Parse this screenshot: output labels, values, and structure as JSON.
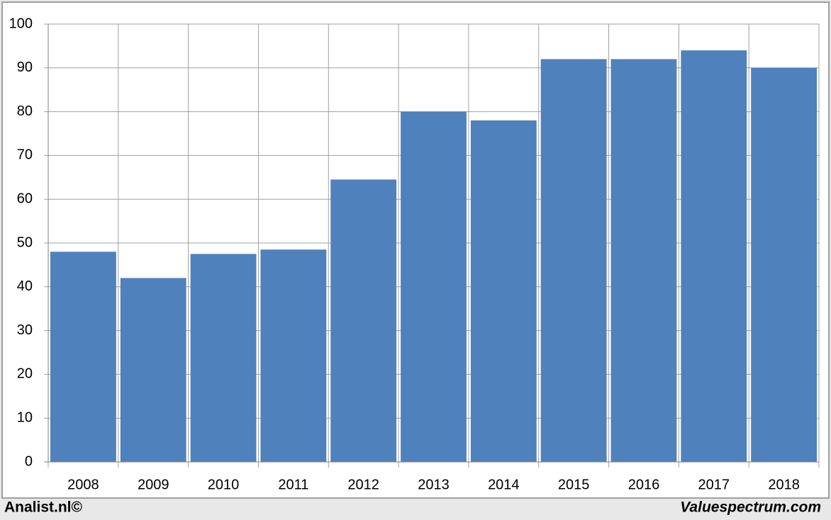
{
  "chart_data": {
    "type": "bar",
    "categories": [
      "2008",
      "2009",
      "2010",
      "2011",
      "2012",
      "2013",
      "2014",
      "2015",
      "2016",
      "2017",
      "2018"
    ],
    "values": [
      48,
      42,
      47.5,
      48.5,
      64.5,
      80,
      78,
      92,
      92,
      94,
      90
    ],
    "color": "#4f81bd",
    "ylim": [
      0,
      100
    ],
    "yticks": [
      0,
      10,
      20,
      30,
      40,
      50,
      60,
      70,
      80,
      90,
      100
    ],
    "grid": true
  },
  "footer": {
    "left": "Analist.nl©",
    "right": "Valuespectrum.com"
  }
}
